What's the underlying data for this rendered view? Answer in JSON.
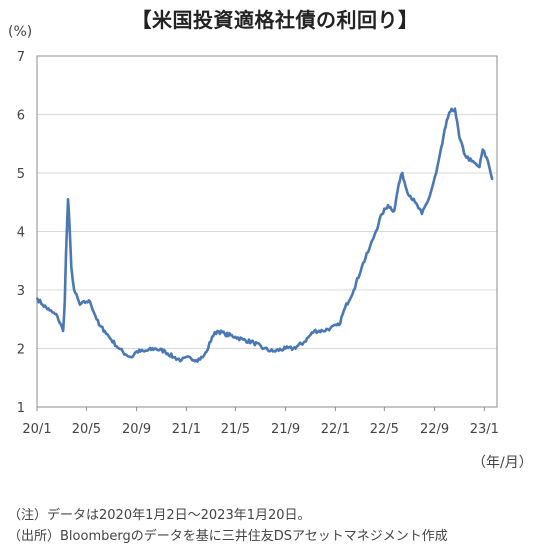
{
  "title": "【米国投資適格社債の利回り】",
  "y_unit": "(%)",
  "x_unit": "（年/月）",
  "notes": {
    "note": "（注）データは2020年1月2日～2023年1月20日。",
    "source": "（出所）Bloombergのデータを基に三井住友DSアセットマネジメント作成"
  },
  "chart_data": {
    "type": "line",
    "title": "米国投資適格社債の利回り",
    "ylabel": "(%)",
    "xlabel": "（年/月）",
    "ylim": [
      1,
      7
    ],
    "yticks": [
      1,
      2,
      3,
      4,
      5,
      6,
      7
    ],
    "xlim": [
      "2020-01",
      "2023-02"
    ],
    "xticks": [
      "20/1",
      "20/5",
      "20/9",
      "21/1",
      "21/5",
      "21/9",
      "22/1",
      "22/5",
      "22/9",
      "23/1"
    ],
    "grid": true,
    "color": "#4a78b5",
    "series": [
      {
        "x": [
          "2020-01-02",
          "2020-01-15",
          "2020-02-01",
          "2020-02-20",
          "2020-03-05",
          "2020-03-09",
          "2020-03-12",
          "2020-03-17",
          "2020-03-20",
          "2020-03-25",
          "2020-04-01",
          "2020-04-15",
          "2020-05-01",
          "2020-05-10",
          "2020-06-01",
          "2020-06-15",
          "2020-07-01",
          "2020-07-20",
          "2020-08-05",
          "2020-08-20",
          "2020-09-01",
          "2020-09-20",
          "2020-10-15",
          "2020-11-10",
          "2020-12-01",
          "2020-12-20",
          "2021-01-10",
          "2021-01-25",
          "2021-02-10",
          "2021-02-20",
          "2021-03-05",
          "2021-03-18",
          "2021-04-05",
          "2021-05-01",
          "2021-05-20",
          "2021-06-15",
          "2021-07-10",
          "2021-08-01",
          "2021-09-01",
          "2021-09-20",
          "2021-10-15",
          "2021-11-10",
          "2021-12-01",
          "2021-12-20",
          "2022-01-10",
          "2022-01-25",
          "2022-02-15",
          "2022-03-07",
          "2022-03-25",
          "2022-04-10",
          "2022-04-25",
          "2022-05-10",
          "2022-05-25",
          "2022-06-05",
          "2022-06-14",
          "2022-06-25",
          "2022-07-15",
          "2022-08-01",
          "2022-08-20",
          "2022-09-05",
          "2022-09-20",
          "2022-10-01",
          "2022-10-10",
          "2022-10-21",
          "2022-11-01",
          "2022-11-15",
          "2022-12-01",
          "2022-12-20",
          "2022-12-28",
          "2023-01-10",
          "2023-01-20"
        ],
        "values": [
          2.85,
          2.75,
          2.65,
          2.55,
          2.3,
          2.8,
          3.6,
          4.55,
          4.2,
          3.4,
          3.0,
          2.75,
          2.8,
          2.8,
          2.4,
          2.3,
          2.15,
          2.0,
          1.9,
          1.85,
          1.95,
          1.95,
          2.0,
          1.95,
          1.85,
          1.8,
          1.85,
          1.8,
          1.85,
          1.95,
          2.2,
          2.3,
          2.25,
          2.2,
          2.15,
          2.1,
          2.0,
          1.95,
          2.0,
          2.0,
          2.1,
          2.3,
          2.3,
          2.35,
          2.4,
          2.7,
          3.0,
          3.4,
          3.7,
          4.0,
          4.3,
          4.45,
          4.35,
          4.8,
          5.0,
          4.7,
          4.5,
          4.3,
          4.6,
          5.0,
          5.5,
          5.9,
          6.05,
          6.1,
          5.6,
          5.3,
          5.2,
          5.1,
          5.4,
          5.2,
          4.9
        ]
      }
    ]
  }
}
